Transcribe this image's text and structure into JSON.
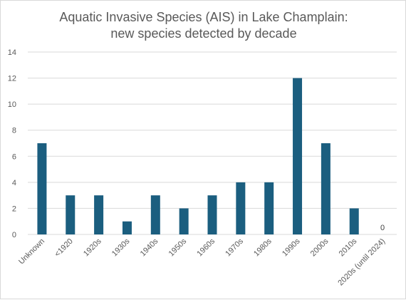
{
  "chart_data": {
    "type": "bar",
    "title": "Aquatic Invasive Species (AIS) in Lake Champlain:",
    "subtitle": "new species detected by decade",
    "xlabel": "",
    "ylabel": "",
    "categories": [
      "Unknown",
      "<1920",
      "1920s",
      "1930s",
      "1940s",
      "1950s",
      "1960s",
      "1970s",
      "1980s",
      "1990s",
      "2000s",
      "2010s",
      "2020s (until 2024)"
    ],
    "values": [
      7,
      3,
      3,
      1,
      3,
      2,
      3,
      4,
      4,
      12,
      7,
      2,
      0
    ],
    "ylim": [
      0,
      14
    ],
    "yticks": [
      0,
      2,
      4,
      6,
      8,
      10,
      12,
      14
    ],
    "grid": true,
    "legend": "none",
    "data_labels": [
      {
        "category": "2020s (until 2024)",
        "text": "0"
      }
    ],
    "colors": {
      "bar": "#1b5e7f",
      "grid": "#d9d9d9",
      "text": "#595959"
    }
  }
}
